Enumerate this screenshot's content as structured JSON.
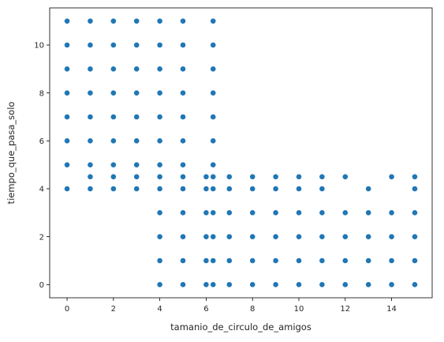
{
  "chart_data": {
    "type": "scatter",
    "title": "",
    "xlabel": "tamanio_de_circulo_de_amigos",
    "ylabel": "tiempo_que_pasa_solo",
    "xlim": [
      -0.75,
      15.75
    ],
    "ylim": [
      -0.55,
      11.55
    ],
    "xticks": [
      0,
      2,
      4,
      6,
      8,
      10,
      12,
      14
    ],
    "yticks": [
      0,
      2,
      4,
      6,
      8,
      10
    ],
    "grid": false,
    "legend": "none",
    "colors": {
      "point": "#1f77b4",
      "axis": "#000000",
      "text": "#262626"
    },
    "series": [
      {
        "points": [
          [
            0,
            4
          ],
          [
            0,
            5
          ],
          [
            0,
            6
          ],
          [
            0,
            7
          ],
          [
            0,
            8
          ],
          [
            0,
            9
          ],
          [
            0,
            10
          ],
          [
            0,
            11
          ],
          [
            1,
            4
          ],
          [
            1,
            4.5
          ],
          [
            1,
            5
          ],
          [
            1,
            6
          ],
          [
            1,
            7
          ],
          [
            1,
            8
          ],
          [
            1,
            9
          ],
          [
            1,
            10
          ],
          [
            1,
            11
          ],
          [
            2,
            4
          ],
          [
            2,
            4.5
          ],
          [
            2,
            5
          ],
          [
            2,
            6
          ],
          [
            2,
            7
          ],
          [
            2,
            8
          ],
          [
            2,
            9
          ],
          [
            2,
            10
          ],
          [
            2,
            11
          ],
          [
            3,
            4
          ],
          [
            3,
            4.5
          ],
          [
            3,
            5
          ],
          [
            3,
            6
          ],
          [
            3,
            7
          ],
          [
            3,
            8
          ],
          [
            3,
            9
          ],
          [
            3,
            10
          ],
          [
            3,
            11
          ],
          [
            4,
            0
          ],
          [
            4,
            1
          ],
          [
            4,
            2
          ],
          [
            4,
            3
          ],
          [
            4,
            4
          ],
          [
            4,
            4.5
          ],
          [
            4,
            5
          ],
          [
            4,
            6
          ],
          [
            4,
            7
          ],
          [
            4,
            8
          ],
          [
            4,
            9
          ],
          [
            4,
            10
          ],
          [
            4,
            11
          ],
          [
            5,
            0
          ],
          [
            5,
            1
          ],
          [
            5,
            2
          ],
          [
            5,
            3
          ],
          [
            5,
            4
          ],
          [
            5,
            4.5
          ],
          [
            5,
            5
          ],
          [
            5,
            6
          ],
          [
            5,
            7
          ],
          [
            5,
            8
          ],
          [
            5,
            9
          ],
          [
            5,
            10
          ],
          [
            5,
            11
          ],
          [
            6,
            0
          ],
          [
            6,
            1
          ],
          [
            6,
            2
          ],
          [
            6,
            3
          ],
          [
            6,
            4
          ],
          [
            6,
            4.5
          ],
          [
            6.3,
            0
          ],
          [
            6.3,
            1
          ],
          [
            6.3,
            2
          ],
          [
            6.3,
            3
          ],
          [
            6.3,
            4
          ],
          [
            6.3,
            4.5
          ],
          [
            6.3,
            5
          ],
          [
            6.3,
            6
          ],
          [
            6.3,
            7
          ],
          [
            6.3,
            8
          ],
          [
            6.3,
            9
          ],
          [
            6.3,
            10
          ],
          [
            6.3,
            11
          ],
          [
            7,
            0
          ],
          [
            7,
            1
          ],
          [
            7,
            2
          ],
          [
            7,
            3
          ],
          [
            7,
            4
          ],
          [
            7,
            4.5
          ],
          [
            8,
            0
          ],
          [
            8,
            1
          ],
          [
            8,
            2
          ],
          [
            8,
            3
          ],
          [
            8,
            4
          ],
          [
            8,
            4.5
          ],
          [
            9,
            0
          ],
          [
            9,
            1
          ],
          [
            9,
            2
          ],
          [
            9,
            3
          ],
          [
            9,
            4
          ],
          [
            9,
            4.5
          ],
          [
            10,
            0
          ],
          [
            10,
            1
          ],
          [
            10,
            2
          ],
          [
            10,
            3
          ],
          [
            10,
            4
          ],
          [
            10,
            4.5
          ],
          [
            11,
            0
          ],
          [
            11,
            1
          ],
          [
            11,
            2
          ],
          [
            11,
            3
          ],
          [
            11,
            4
          ],
          [
            11,
            4.5
          ],
          [
            12,
            0
          ],
          [
            12,
            1
          ],
          [
            12,
            2
          ],
          [
            12,
            3
          ],
          [
            12,
            4.5
          ],
          [
            13,
            0
          ],
          [
            13,
            1
          ],
          [
            13,
            2
          ],
          [
            13,
            3
          ],
          [
            13,
            4
          ],
          [
            14,
            0
          ],
          [
            14,
            1
          ],
          [
            14,
            2
          ],
          [
            14,
            3
          ],
          [
            14,
            4.5
          ],
          [
            15,
            0
          ],
          [
            15,
            1
          ],
          [
            15,
            2
          ],
          [
            15,
            3
          ],
          [
            15,
            4
          ],
          [
            15,
            4.5
          ]
        ]
      }
    ]
  }
}
